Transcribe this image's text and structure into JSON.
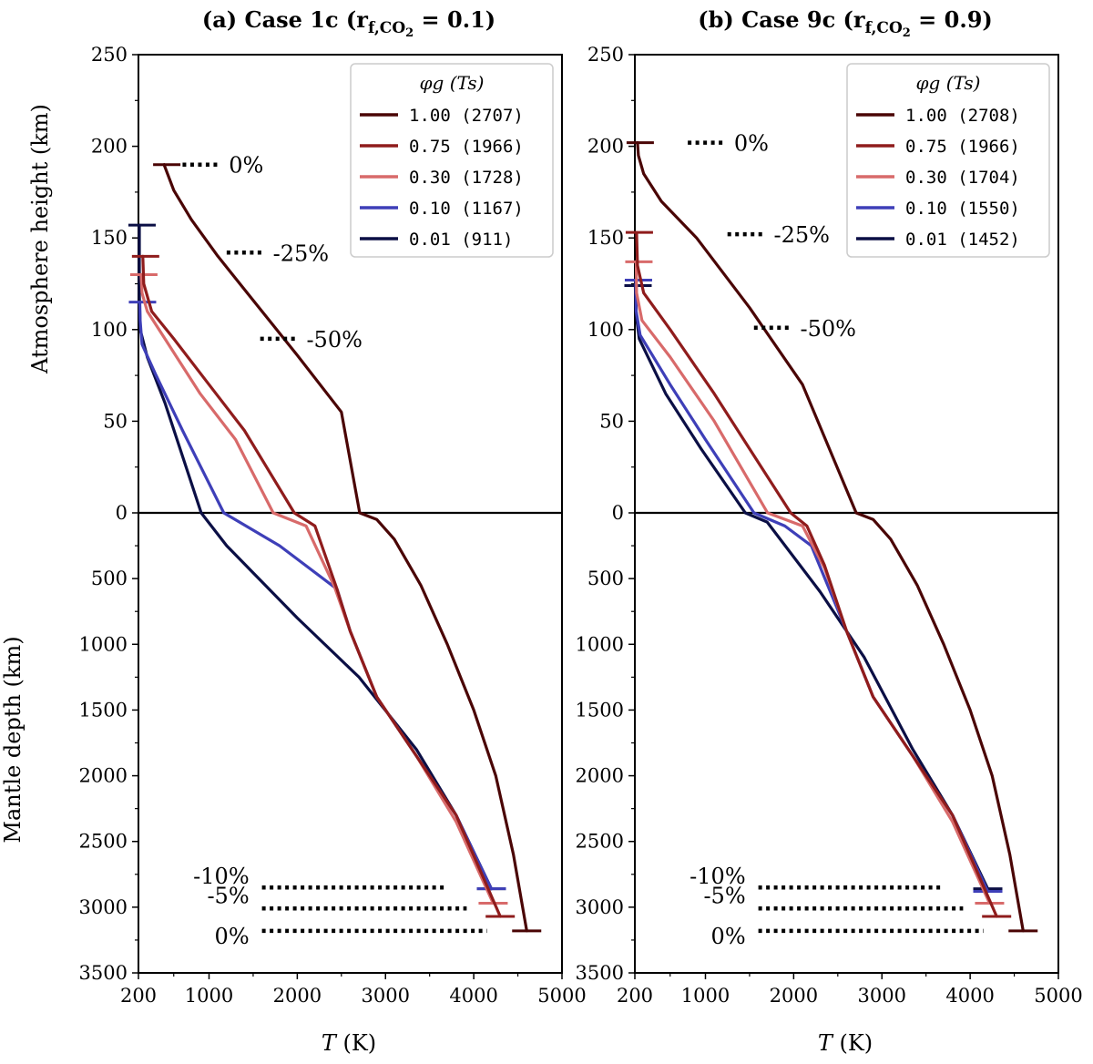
{
  "figure": {
    "ylabel_atmo": "Atmosphere height (km)",
    "ylabel_mantle": "Mantle depth (km)"
  },
  "chart_data": [
    {
      "type": "line",
      "title": "(a) Case 1c (r",
      "title_sub": "f,CO",
      "title_sub2": "2",
      "title_tail": " = 0.1)",
      "xlabel_var": "T",
      "xlabel_unit": " (K)",
      "xlim": [
        200,
        5000
      ],
      "xticks": [
        "200",
        "1000",
        "2000",
        "3000",
        "4000",
        "5000"
      ],
      "atmo_ylim": [
        0,
        250
      ],
      "atmo_yticks": [
        "0",
        "50",
        "100",
        "150",
        "200",
        "250"
      ],
      "mantle_ylim": [
        0,
        3500
      ],
      "mantle_yticks": [
        "500",
        "1000",
        "1500",
        "2000",
        "2500",
        "3000",
        "3500"
      ],
      "legend_title": "φg (Ts)",
      "legend_position": "top-right",
      "series": [
        {
          "name": "1.00 (2707)",
          "color": "#4a0505",
          "atmo": [
            [
              490,
              190
            ],
            [
              600,
              176
            ],
            [
              800,
              160
            ],
            [
              1100,
              140
            ],
            [
              1500,
              116
            ],
            [
              2000,
              86
            ],
            [
              2500,
              55
            ],
            [
              2707,
              0
            ]
          ],
          "mantle": [
            [
              2707,
              0
            ],
            [
              2900,
              50
            ],
            [
              3100,
              200
            ],
            [
              3400,
              550
            ],
            [
              3700,
              1000
            ],
            [
              4000,
              1500
            ],
            [
              4250,
              2000
            ],
            [
              4450,
              2600
            ],
            [
              4600,
              3180
            ]
          ],
          "atmo_cap": 190,
          "mantle_cap": 3180
        },
        {
          "name": "0.75 (1966)",
          "color": "#8f1c1c",
          "atmo": [
            [
              250,
              140
            ],
            [
              260,
              125
            ],
            [
              350,
              110
            ],
            [
              600,
              95
            ],
            [
              1000,
              70
            ],
            [
              1400,
              45
            ],
            [
              1966,
              0
            ]
          ],
          "mantle": [
            [
              1966,
              0
            ],
            [
              2200,
              100
            ],
            [
              2450,
              580
            ],
            [
              2600,
              900
            ],
            [
              2900,
              1400
            ],
            [
              3350,
              1850
            ],
            [
              3800,
              2300
            ],
            [
              4300,
              3070
            ]
          ],
          "atmo_cap": 140,
          "mantle_cap": 3070
        },
        {
          "name": "0.30 (1728)",
          "color": "#d86a6a",
          "atmo": [
            [
              230,
              130
            ],
            [
              240,
              120
            ],
            [
              300,
              110
            ],
            [
              500,
              95
            ],
            [
              900,
              65
            ],
            [
              1300,
              40
            ],
            [
              1728,
              0
            ]
          ],
          "mantle": [
            [
              1728,
              0
            ],
            [
              2100,
              100
            ],
            [
              2420,
              560
            ],
            [
              2600,
              900
            ],
            [
              2900,
              1400
            ],
            [
              3350,
              1850
            ],
            [
              3800,
              2350
            ],
            [
              4220,
              2970
            ]
          ],
          "atmo_cap": 130,
          "mantle_cap": 2970
        },
        {
          "name": "0.10 (1167)",
          "color": "#3e3fb8",
          "atmo": [
            [
              215,
              115
            ],
            [
              220,
              105
            ],
            [
              240,
              92
            ],
            [
              400,
              75
            ],
            [
              700,
              45
            ],
            [
              1167,
              0
            ]
          ],
          "mantle": [
            [
              1167,
              0
            ],
            [
              1800,
              250
            ],
            [
              2450,
              580
            ],
            [
              2600,
              900
            ],
            [
              2900,
              1400
            ],
            [
              3350,
              1850
            ],
            [
              3800,
              2300
            ],
            [
              4200,
              2860
            ]
          ],
          "atmo_cap": 115,
          "mantle_cap": 2860
        },
        {
          "name": "0.01 (911)",
          "color": "#0b0f45",
          "atmo": [
            [
              210,
              157
            ],
            [
              210,
              120
            ],
            [
              220,
              100
            ],
            [
              300,
              85
            ],
            [
              500,
              60
            ],
            [
              911,
              0
            ]
          ],
          "mantle": [
            [
              911,
              0
            ],
            [
              1200,
              250
            ],
            [
              2000,
              800
            ],
            [
              2700,
              1250
            ],
            [
              3350,
              1800
            ],
            [
              3800,
              2300
            ],
            [
              4200,
              2860
            ]
          ],
          "atmo_cap": 157,
          "mantle_cap": 2860
        }
      ],
      "atmo_markers": [
        {
          "label": "0%",
          "t_from": 700,
          "t_to": 1100,
          "h": 190
        },
        {
          "label": "-25%",
          "t_from": 1200,
          "t_to": 1600,
          "h": 142
        },
        {
          "label": "-50%",
          "t_from": 1580,
          "t_to": 1980,
          "h": 95
        }
      ],
      "mantle_markers": [
        {
          "label": "-10%",
          "t_from": 1600,
          "t_to": 3700,
          "d": 2850
        },
        {
          "label": "-5%",
          "t_from": 1600,
          "t_to": 3920,
          "d": 3010
        },
        {
          "label": "0%",
          "t_from": 1600,
          "t_to": 4150,
          "d": 3180
        }
      ]
    },
    {
      "type": "line",
      "title": "(b) Case 9c (r",
      "title_sub": "f,CO",
      "title_sub2": "2",
      "title_tail": " = 0.9)",
      "xlabel_var": "T",
      "xlabel_unit": " (K)",
      "xlim": [
        200,
        5000
      ],
      "xticks": [
        "200",
        "1000",
        "2000",
        "3000",
        "4000",
        "5000"
      ],
      "atmo_ylim": [
        0,
        250
      ],
      "atmo_yticks": [
        "0",
        "50",
        "100",
        "150",
        "200",
        "250"
      ],
      "mantle_ylim": [
        0,
        3500
      ],
      "mantle_yticks": [
        "500",
        "1000",
        "1500",
        "2000",
        "2500",
        "3000",
        "3500"
      ],
      "legend_title": "φg (Ts)",
      "legend_position": "top-right",
      "series": [
        {
          "name": "1.00 (2708)",
          "color": "#4a0505",
          "atmo": [
            [
              230,
              202
            ],
            [
              240,
              195
            ],
            [
              300,
              185
            ],
            [
              500,
              170
            ],
            [
              900,
              150
            ],
            [
              1500,
              112
            ],
            [
              2100,
              70
            ],
            [
              2708,
              0
            ]
          ],
          "mantle": [
            [
              2708,
              0
            ],
            [
              2900,
              50
            ],
            [
              3100,
              200
            ],
            [
              3400,
              550
            ],
            [
              3700,
              1000
            ],
            [
              4000,
              1500
            ],
            [
              4250,
              2000
            ],
            [
              4450,
              2600
            ],
            [
              4600,
              3180
            ]
          ],
          "atmo_cap": 202,
          "mantle_cap": 3180
        },
        {
          "name": "0.75 (1966)",
          "color": "#8f1c1c",
          "atmo": [
            [
              220,
              153
            ],
            [
              230,
              135
            ],
            [
              300,
              120
            ],
            [
              600,
              100
            ],
            [
              1100,
              65
            ],
            [
              1500,
              35
            ],
            [
              1966,
              0
            ]
          ],
          "mantle": [
            [
              1966,
              0
            ],
            [
              2150,
              100
            ],
            [
              2350,
              400
            ],
            [
              2600,
              900
            ],
            [
              2900,
              1400
            ],
            [
              3350,
              1850
            ],
            [
              3800,
              2300
            ],
            [
              4300,
              3070
            ]
          ],
          "atmo_cap": 153,
          "mantle_cap": 3070
        },
        {
          "name": "0.30 (1704)",
          "color": "#d86a6a",
          "atmo": [
            [
              215,
              137
            ],
            [
              220,
              120
            ],
            [
              280,
              105
            ],
            [
              600,
              85
            ],
            [
              1100,
              50
            ],
            [
              1704,
              0
            ]
          ],
          "mantle": [
            [
              1704,
              0
            ],
            [
              2100,
              100
            ],
            [
              2350,
              420
            ],
            [
              2600,
              900
            ],
            [
              2900,
              1400
            ],
            [
              3350,
              1850
            ],
            [
              3800,
              2350
            ],
            [
              4220,
              2970
            ]
          ],
          "atmo_cap": 137,
          "mantle_cap": 2970
        },
        {
          "name": "0.10 (1550)",
          "color": "#3e3fb8",
          "atmo": [
            [
              210,
              127
            ],
            [
              215,
              110
            ],
            [
              260,
              97
            ],
            [
              600,
              70
            ],
            [
              1000,
              40
            ],
            [
              1550,
              0
            ]
          ],
          "mantle": [
            [
              1550,
              0
            ],
            [
              1900,
              100
            ],
            [
              2200,
              250
            ],
            [
              2600,
              900
            ],
            [
              2900,
              1400
            ],
            [
              3350,
              1850
            ],
            [
              3800,
              2300
            ],
            [
              4200,
              2880
            ]
          ],
          "atmo_cap": 127,
          "mantle_cap": 2880
        },
        {
          "name": "0.01 (1452)",
          "color": "#0b0f45",
          "atmo": [
            [
              205,
              124
            ],
            [
              210,
              110
            ],
            [
              250,
              95
            ],
            [
              550,
              65
            ],
            [
              950,
              35
            ],
            [
              1452,
              0
            ]
          ],
          "mantle": [
            [
              1452,
              0
            ],
            [
              1700,
              70
            ],
            [
              2300,
              600
            ],
            [
              2800,
              1100
            ],
            [
              3350,
              1800
            ],
            [
              3800,
              2300
            ],
            [
              4200,
              2860
            ]
          ],
          "atmo_cap": 124,
          "mantle_cap": 2860
        }
      ],
      "atmo_markers": [
        {
          "label": "0%",
          "t_from": 800,
          "t_to": 1200,
          "h": 202
        },
        {
          "label": "-25%",
          "t_from": 1250,
          "t_to": 1650,
          "h": 152
        },
        {
          "label": "-50%",
          "t_from": 1550,
          "t_to": 1950,
          "h": 101
        }
      ],
      "mantle_markers": [
        {
          "label": "-10%",
          "t_from": 1600,
          "t_to": 3700,
          "d": 2850
        },
        {
          "label": "-5%",
          "t_from": 1600,
          "t_to": 3920,
          "d": 3010
        },
        {
          "label": "0%",
          "t_from": 1600,
          "t_to": 4150,
          "d": 3180
        }
      ]
    }
  ]
}
